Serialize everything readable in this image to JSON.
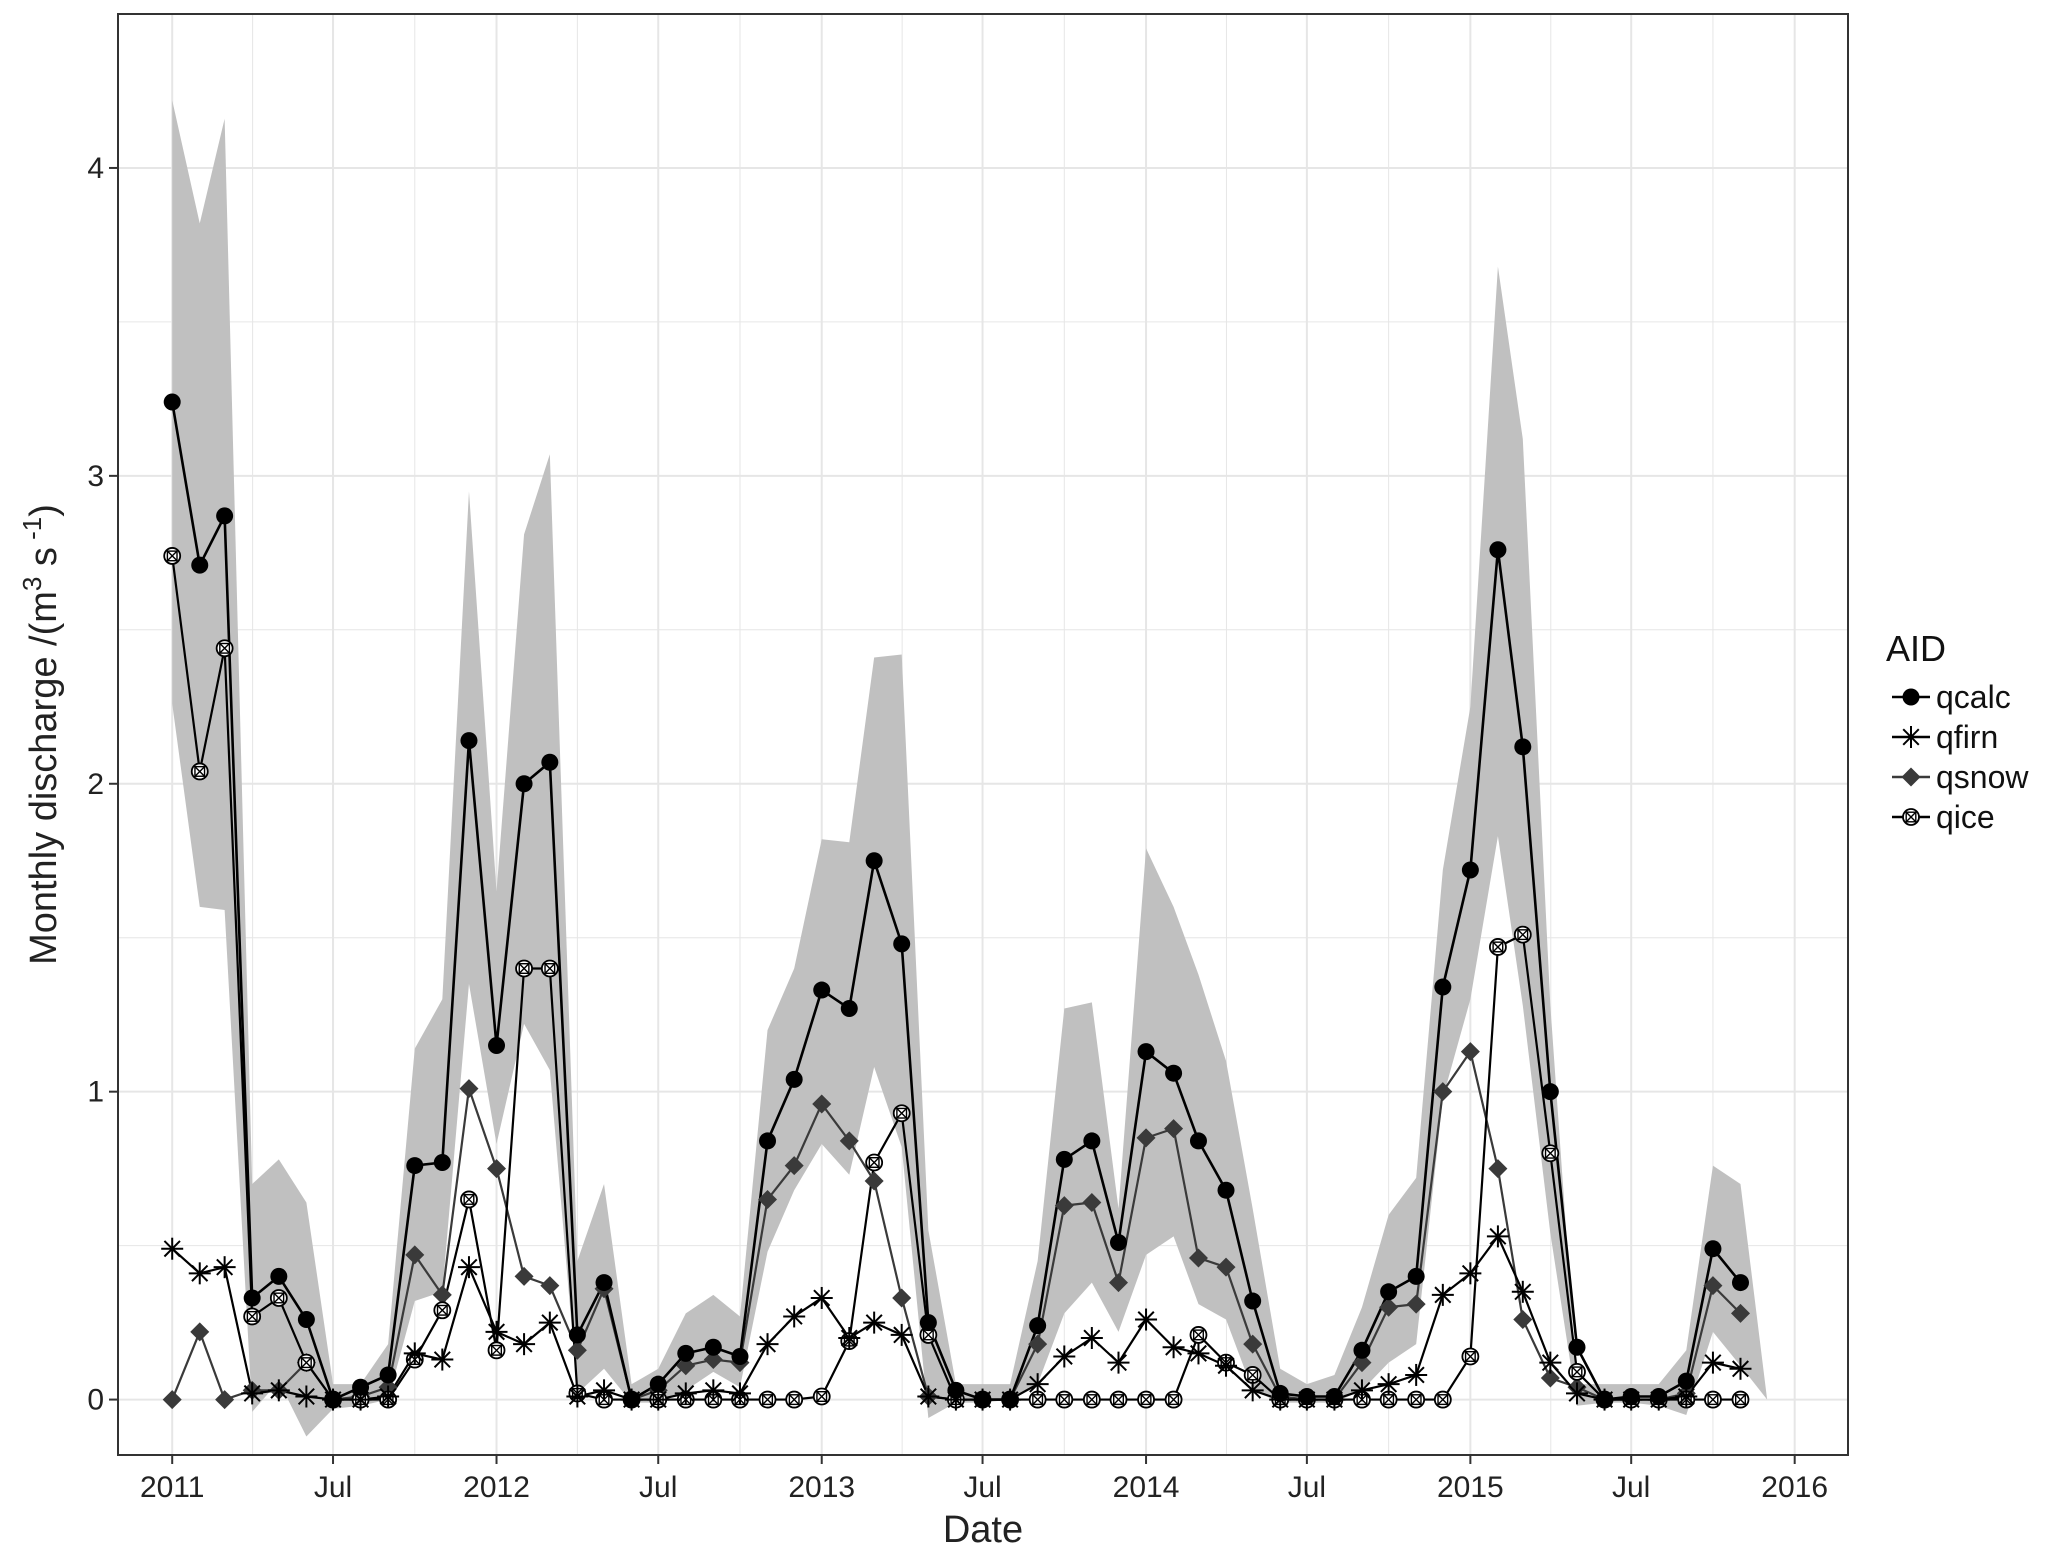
{
  "chart_data": {
    "type": "line",
    "title": "",
    "xlabel": "Date",
    "ylabel": "Monthly discharge /(m",
    "ylabel_sup": "3",
    "ylabel_mid": " s",
    "ylabel_sup2": " -1",
    "ylabel_end": ")",
    "x": [
      "2011-01",
      "2011-02",
      "2011-03",
      "2011-04",
      "2011-05",
      "2011-06",
      "2011-07",
      "2011-08",
      "2011-09",
      "2011-10",
      "2011-11",
      "2011-12",
      "2012-01",
      "2012-02",
      "2012-03",
      "2012-04",
      "2012-05",
      "2012-06",
      "2012-07",
      "2012-08",
      "2012-09",
      "2012-10",
      "2012-11",
      "2012-12",
      "2013-01",
      "2013-02",
      "2013-03",
      "2013-04",
      "2013-05",
      "2013-06",
      "2013-07",
      "2013-08",
      "2013-09",
      "2013-10",
      "2013-11",
      "2013-12",
      "2014-01",
      "2014-02",
      "2014-03",
      "2014-04",
      "2014-05",
      "2014-06",
      "2014-07",
      "2014-08",
      "2014-09",
      "2014-10",
      "2014-11",
      "2014-12",
      "2015-01",
      "2015-02",
      "2015-03",
      "2015-04",
      "2015-05",
      "2015-06",
      "2015-07",
      "2015-08",
      "2015-09",
      "2015-10",
      "2015-11",
      "2015-12"
    ],
    "xlim": [
      "2010-11-01",
      "2016-03-01"
    ],
    "x_ticks": [
      {
        "date": "2011-01",
        "label": "2011"
      },
      {
        "date": "2011-07",
        "label": "Jul"
      },
      {
        "date": "2012-01",
        "label": "2012"
      },
      {
        "date": "2012-07",
        "label": "Jul"
      },
      {
        "date": "2013-01",
        "label": "2013"
      },
      {
        "date": "2013-07",
        "label": "Jul"
      },
      {
        "date": "2014-01",
        "label": "2014"
      },
      {
        "date": "2014-07",
        "label": "Jul"
      },
      {
        "date": "2015-01",
        "label": "2015"
      },
      {
        "date": "2015-07",
        "label": "Jul"
      },
      {
        "date": "2016-01",
        "label": "2016"
      }
    ],
    "ylim": [
      -0.18,
      4.5
    ],
    "y_ticks": [
      0,
      1,
      2,
      3,
      4
    ],
    "grid": true,
    "band": {
      "upper": [
        4.22,
        3.82,
        4.16,
        0.7,
        0.78,
        0.64,
        0.05,
        0.05,
        0.18,
        1.14,
        1.3,
        2.95,
        1.65,
        2.81,
        3.07,
        0.45,
        0.7,
        0.05,
        0.1,
        0.28,
        0.34,
        0.27,
        1.2,
        1.4,
        1.82,
        1.81,
        2.41,
        2.42,
        0.55,
        0.05,
        0.05,
        0.05,
        0.45,
        1.27,
        1.29,
        0.62,
        1.79,
        1.6,
        1.38,
        1.1,
        0.62,
        0.1,
        0.05,
        0.08,
        0.3,
        0.6,
        0.72,
        1.72,
        2.25,
        3.68,
        3.12,
        1.28,
        0.05,
        0.05,
        0.05,
        0.05,
        0.16,
        0.76,
        0.7,
        0.0
      ],
      "lower": [
        2.26,
        1.6,
        1.59,
        -0.04,
        0.06,
        -0.12,
        -0.03,
        -0.02,
        0.0,
        0.32,
        0.35,
        1.35,
        0.83,
        1.22,
        1.07,
        0.02,
        0.1,
        -0.01,
        -0.01,
        0.03,
        0.09,
        0.04,
        0.48,
        0.68,
        0.83,
        0.73,
        1.08,
        0.82,
        -0.06,
        -0.01,
        -0.01,
        0.0,
        0.05,
        0.28,
        0.38,
        0.22,
        0.47,
        0.53,
        0.31,
        0.26,
        0.03,
        -0.01,
        -0.01,
        -0.01,
        0.03,
        0.12,
        0.18,
        0.98,
        1.3,
        1.83,
        1.28,
        0.54,
        -0.02,
        -0.01,
        -0.01,
        -0.02,
        -0.05,
        0.22,
        0.11,
        0.0
      ]
    },
    "series": [
      {
        "name": "qcalc",
        "marker": "circle",
        "values": [
          3.24,
          2.71,
          2.87,
          0.33,
          0.4,
          0.26,
          0.0,
          0.04,
          0.08,
          0.76,
          0.77,
          2.14,
          1.15,
          2.0,
          2.07,
          0.21,
          0.38,
          0.0,
          0.05,
          0.15,
          0.17,
          0.14,
          0.84,
          1.04,
          1.33,
          1.27,
          1.75,
          1.48,
          0.25,
          0.03,
          0.0,
          0.0,
          0.24,
          0.78,
          0.84,
          0.51,
          1.13,
          1.06,
          0.84,
          0.68,
          0.32,
          0.02,
          0.01,
          0.01,
          0.16,
          0.35,
          0.4,
          1.34,
          1.72,
          2.76,
          2.12,
          1.0,
          0.17,
          0.0,
          0.01,
          0.01,
          0.06,
          0.49,
          0.38,
          null
        ]
      },
      {
        "name": "qfirn",
        "marker": "asterisk",
        "values": [
          0.49,
          0.41,
          0.43,
          0.02,
          0.03,
          0.01,
          0.0,
          0.0,
          0.01,
          0.15,
          0.13,
          0.43,
          0.22,
          0.18,
          0.25,
          0.01,
          0.03,
          0.0,
          0.0,
          0.02,
          0.03,
          0.02,
          0.18,
          0.27,
          0.33,
          0.2,
          0.25,
          0.21,
          0.01,
          0.0,
          0.0,
          0.0,
          0.05,
          0.14,
          0.2,
          0.12,
          0.26,
          0.17,
          0.15,
          0.11,
          0.03,
          0.0,
          0.0,
          0.0,
          0.03,
          0.05,
          0.08,
          0.34,
          0.41,
          0.53,
          0.35,
          0.12,
          0.02,
          0.0,
          0.0,
          0.0,
          0.01,
          0.12,
          0.1,
          null
        ]
      },
      {
        "name": "qsnow",
        "marker": "diamond",
        "values": [
          0.0,
          0.22,
          0.0,
          0.03,
          0.03,
          0.12,
          0.0,
          0.01,
          0.04,
          0.47,
          0.34,
          1.01,
          0.75,
          0.4,
          0.37,
          0.16,
          0.36,
          0.0,
          0.03,
          0.11,
          0.13,
          0.12,
          0.65,
          0.76,
          0.96,
          0.84,
          0.71,
          0.33,
          0.01,
          0.0,
          0.0,
          0.0,
          0.18,
          0.63,
          0.64,
          0.38,
          0.85,
          0.88,
          0.46,
          0.43,
          0.18,
          0.01,
          0.0,
          0.0,
          0.12,
          0.3,
          0.31,
          1.0,
          1.13,
          0.75,
          0.26,
          0.07,
          0.04,
          0.0,
          0.0,
          0.0,
          0.02,
          0.37,
          0.28,
          null
        ]
      },
      {
        "name": "qice",
        "marker": "circle-cross",
        "values": [
          2.74,
          2.04,
          2.44,
          0.27,
          0.33,
          0.12,
          0.0,
          0.0,
          0.0,
          0.13,
          0.29,
          0.65,
          0.16,
          1.4,
          1.4,
          0.02,
          0.0,
          0.0,
          0.0,
          0.0,
          0.0,
          0.0,
          0.0,
          0.0,
          0.01,
          0.19,
          0.77,
          0.93,
          0.21,
          0.0,
          0.0,
          0.0,
          0.0,
          0.0,
          0.0,
          0.0,
          0.0,
          0.0,
          0.21,
          0.12,
          0.08,
          0.0,
          0.0,
          0.0,
          0.0,
          0.0,
          0.0,
          0.0,
          0.14,
          1.47,
          1.51,
          0.8,
          0.09,
          0.0,
          0.0,
          0.0,
          0.0,
          0.0,
          0.0,
          null
        ]
      }
    ],
    "legend": {
      "title": "AID",
      "position": "right"
    }
  },
  "style": {
    "band_color": "#c0c0c0",
    "grid_color": "#e6e6e6",
    "frame_color": "#333333",
    "dark_series": "#000000",
    "mid_series": "#3a3a3a"
  }
}
